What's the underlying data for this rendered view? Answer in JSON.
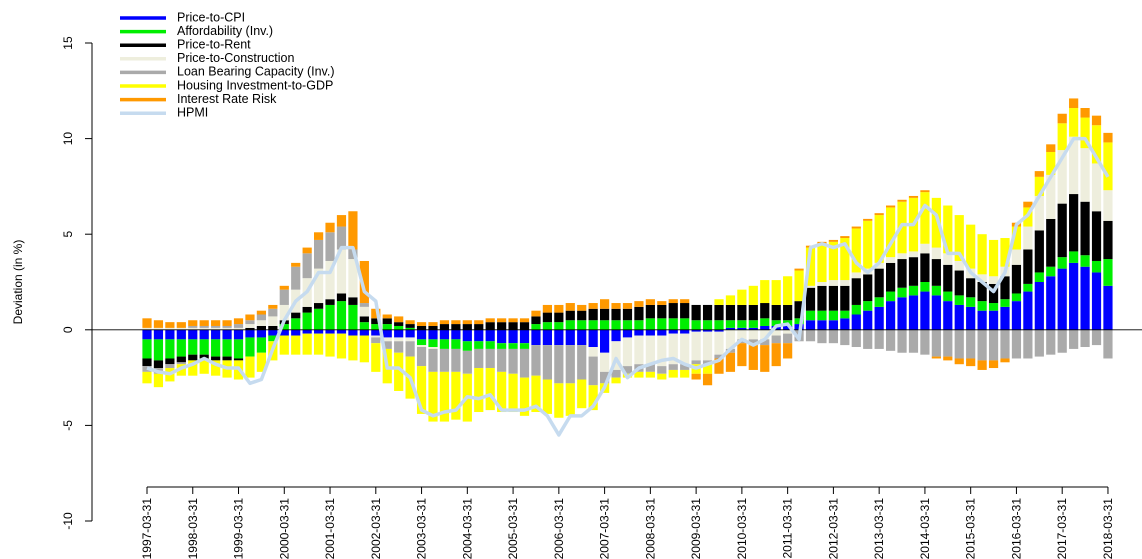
{
  "chart_data": {
    "type": "bar",
    "stacked": true,
    "ylabel": "Deviation (in %)",
    "ylim": [
      -10,
      15
    ],
    "yticks": [
      -10,
      -5,
      0,
      5,
      10,
      15
    ],
    "legend": "top-left",
    "categories": [
      "1997-03-31",
      null,
      null,
      null,
      "1998-03-31",
      null,
      null,
      null,
      "1999-03-31",
      null,
      null,
      null,
      "2000-03-31",
      null,
      null,
      null,
      "2001-03-31",
      null,
      null,
      null,
      "2002-03-31",
      null,
      null,
      null,
      "2003-03-31",
      null,
      null,
      null,
      "2004-03-31",
      null,
      null,
      null,
      "2005-03-31",
      null,
      null,
      null,
      "2006-03-31",
      null,
      null,
      null,
      "2007-03-31",
      null,
      null,
      null,
      "2008-03-31",
      null,
      null,
      null,
      "2009-03-31",
      null,
      null,
      null,
      "2010-03-31",
      null,
      null,
      null,
      "2011-03-31",
      null,
      null,
      null,
      "2012-03-31",
      null,
      null,
      null,
      "2013-03-31",
      null,
      null,
      null,
      "2014-03-31",
      null,
      null,
      null,
      "2015-03-31",
      null,
      null,
      null,
      "2016-03-31",
      null,
      null,
      null,
      "2017-03-31",
      null,
      null,
      null,
      "2018-03-31"
    ],
    "series": [
      {
        "name": "Price-to-CPI",
        "color": "#0000ff",
        "values": [
          -0.5,
          -0.5,
          -0.5,
          -0.5,
          -0.5,
          -0.5,
          -0.5,
          -0.5,
          -0.5,
          -0.4,
          -0.4,
          -0.3,
          -0.3,
          -0.3,
          -0.2,
          -0.2,
          -0.2,
          -0.2,
          -0.3,
          -0.3,
          -0.3,
          -0.4,
          -0.4,
          -0.4,
          -0.5,
          -0.5,
          -0.5,
          -0.5,
          -0.6,
          -0.6,
          -0.6,
          -0.7,
          -0.7,
          -0.7,
          -0.8,
          -0.8,
          -0.8,
          -0.8,
          -0.8,
          -0.9,
          -1.2,
          -0.6,
          -0.4,
          -0.3,
          -0.3,
          -0.3,
          -0.2,
          -0.2,
          -0.1,
          -0.1,
          -0.1,
          0.1,
          0.1,
          0.1,
          0.2,
          0.2,
          0.2,
          0.3,
          0.5,
          0.5,
          0.5,
          0.6,
          0.8,
          1.0,
          1.2,
          1.5,
          1.7,
          1.8,
          2.0,
          1.8,
          1.5,
          1.3,
          1.2,
          1.0,
          1.0,
          1.2,
          1.5,
          2.0,
          2.5,
          2.8,
          3.2,
          3.5,
          3.3,
          3.0,
          2.3
        ]
      },
      {
        "name": "Affordability (Inv.)",
        "color": "#00ee00",
        "values": [
          -1.0,
          -1.1,
          -1.0,
          -0.9,
          -0.8,
          -0.8,
          -0.9,
          -0.9,
          -1.0,
          -1.0,
          -0.8,
          -0.3,
          0.3,
          0.6,
          0.9,
          1.1,
          1.3,
          1.5,
          1.3,
          0.4,
          0.3,
          0.3,
          0.2,
          0.1,
          -0.3,
          -0.4,
          -0.5,
          -0.5,
          -0.5,
          -0.4,
          -0.4,
          -0.3,
          -0.3,
          -0.3,
          0.3,
          0.4,
          0.4,
          0.5,
          0.5,
          0.5,
          0.5,
          0.5,
          0.5,
          0.5,
          0.6,
          0.6,
          0.6,
          0.6,
          0.5,
          0.5,
          0.5,
          0.4,
          0.4,
          0.4,
          0.4,
          0.3,
          0.3,
          0.3,
          0.5,
          0.5,
          0.5,
          0.4,
          0.5,
          0.5,
          0.5,
          0.5,
          0.5,
          0.5,
          0.5,
          0.5,
          0.5,
          0.5,
          0.5,
          0.5,
          0.4,
          0.4,
          0.4,
          0.4,
          0.5,
          0.5,
          0.6,
          0.6,
          0.6,
          0.6,
          1.4
        ]
      },
      {
        "name": "Price-to-Rent",
        "color": "#000000",
        "values": [
          -0.4,
          -0.4,
          -0.3,
          -0.3,
          -0.3,
          -0.2,
          -0.2,
          -0.2,
          -0.1,
          0.1,
          0.2,
          0.2,
          0.2,
          0.3,
          0.3,
          0.3,
          0.3,
          0.4,
          0.4,
          0.3,
          0.3,
          0.3,
          0.2,
          0.2,
          0.2,
          0.2,
          0.3,
          0.3,
          0.3,
          0.3,
          0.4,
          0.4,
          0.4,
          0.4,
          0.4,
          0.5,
          0.5,
          0.5,
          0.5,
          0.6,
          0.6,
          0.6,
          0.6,
          0.7,
          0.7,
          0.7,
          0.8,
          0.8,
          0.8,
          0.8,
          0.8,
          0.8,
          0.8,
          0.8,
          0.8,
          0.8,
          0.8,
          0.9,
          1.2,
          1.3,
          1.3,
          1.3,
          1.4,
          1.4,
          1.5,
          1.5,
          1.5,
          1.5,
          1.5,
          1.4,
          1.4,
          1.3,
          1.0,
          1.0,
          1.0,
          1.2,
          1.5,
          1.8,
          2.2,
          2.5,
          2.8,
          3.0,
          2.8,
          2.6,
          2.0
        ]
      },
      {
        "name": "Price-to-Construction",
        "color": "#eeeedd",
        "values": [
          0.1,
          0.1,
          0.1,
          0.1,
          0.1,
          0.1,
          0.1,
          0.1,
          0.1,
          0.2,
          0.3,
          0.5,
          0.8,
          1.2,
          1.5,
          1.8,
          2.0,
          2.3,
          2.0,
          0.5,
          -0.1,
          -0.2,
          -0.2,
          -0.2,
          -0.1,
          -0.1,
          0.0,
          0.0,
          0.0,
          0.0,
          0.0,
          0.0,
          0.0,
          0.0,
          0.0,
          0.0,
          0.0,
          0.0,
          0.0,
          -0.5,
          -1.0,
          -1.5,
          -1.5,
          -1.5,
          -1.5,
          -1.6,
          -1.6,
          -1.6,
          -1.5,
          -1.5,
          -1.2,
          -1.0,
          -0.5,
          -0.5,
          -0.5,
          -0.3,
          -0.2,
          0.0,
          0.1,
          0.2,
          0.3,
          0.3,
          0.3,
          0.3,
          0.3,
          0.3,
          0.3,
          0.3,
          0.5,
          0.6,
          0.6,
          0.5,
          0.5,
          0.4,
          0.4,
          0.5,
          0.8,
          1.2,
          1.8,
          2.3,
          2.8,
          3.0,
          2.8,
          2.5,
          1.6
        ]
      },
      {
        "name": "Loan Bearing Capacity (Inv.)",
        "color": "#aaaaaa",
        "values": [
          -0.3,
          -0.3,
          -0.2,
          -0.1,
          0.1,
          0.1,
          0.1,
          0.1,
          0.2,
          0.2,
          0.3,
          0.4,
          0.8,
          1.2,
          1.3,
          1.5,
          1.5,
          1.2,
          0.5,
          0.2,
          -0.3,
          -0.4,
          -0.6,
          -0.8,
          -1.0,
          -1.2,
          -1.2,
          -1.2,
          -1.2,
          -1.0,
          -1.0,
          -1.2,
          -1.3,
          -1.5,
          -1.6,
          -1.8,
          -2.0,
          -2.0,
          -1.8,
          -1.5,
          -0.6,
          -0.4,
          -0.4,
          -0.4,
          -0.4,
          -0.4,
          -0.3,
          -0.3,
          -0.2,
          -0.2,
          -0.2,
          -0.2,
          -0.2,
          -0.3,
          -0.3,
          -0.4,
          -0.5,
          -0.6,
          -0.6,
          -0.7,
          -0.7,
          -0.8,
          -0.9,
          -1.0,
          -1.0,
          -1.1,
          -1.2,
          -1.2,
          -1.3,
          -1.4,
          -1.4,
          -1.5,
          -1.5,
          -1.6,
          -1.6,
          -1.5,
          -1.5,
          -1.5,
          -1.4,
          -1.3,
          -1.2,
          -1.0,
          -0.9,
          -0.8,
          -1.5
        ]
      },
      {
        "name": "Housing Investment-to-GDP",
        "color": "#ffff00",
        "values": [
          -0.6,
          -0.7,
          -0.7,
          -0.6,
          -0.8,
          -0.8,
          -0.8,
          -0.9,
          -1.0,
          -1.1,
          -1.0,
          -1.0,
          -1.0,
          -1.0,
          -1.1,
          -1.1,
          -1.2,
          -1.3,
          -1.3,
          -1.4,
          -1.5,
          -1.8,
          -2.0,
          -2.2,
          -2.5,
          -2.6,
          -2.6,
          -2.5,
          -2.5,
          -2.3,
          -2.2,
          -2.1,
          -2.0,
          -2.0,
          -1.9,
          -1.8,
          -1.8,
          -1.7,
          -1.5,
          -1.3,
          -0.5,
          -0.3,
          -0.2,
          -0.3,
          -0.3,
          -0.3,
          -0.4,
          -0.4,
          -0.5,
          -0.5,
          0.3,
          0.5,
          0.8,
          1.0,
          1.2,
          1.3,
          1.5,
          1.6,
          2.0,
          2.0,
          2.0,
          2.2,
          2.3,
          2.5,
          2.5,
          2.6,
          2.7,
          2.8,
          2.7,
          2.6,
          2.5,
          2.4,
          2.3,
          2.1,
          1.9,
          1.5,
          1.2,
          1.0,
          1.0,
          1.2,
          1.4,
          1.5,
          1.6,
          2.0,
          2.5
        ]
      },
      {
        "name": "Interest Rate Risk",
        "color": "#ff9900",
        "values": [
          0.5,
          0.4,
          0.3,
          0.3,
          0.3,
          0.3,
          0.3,
          0.3,
          0.3,
          0.3,
          0.2,
          0.2,
          0.2,
          0.2,
          0.3,
          0.4,
          0.5,
          0.6,
          2.0,
          2.2,
          0.5,
          0.2,
          0.3,
          0.2,
          0.2,
          0.2,
          0.2,
          0.2,
          0.2,
          0.2,
          0.2,
          0.2,
          0.2,
          0.2,
          0.3,
          0.4,
          0.4,
          0.4,
          0.3,
          0.3,
          0.5,
          0.3,
          0.3,
          0.3,
          0.3,
          0.2,
          0.2,
          0.2,
          -0.3,
          -0.6,
          -0.8,
          -1.0,
          -1.2,
          -1.3,
          -1.4,
          -1.2,
          -0.8,
          0.1,
          0.1,
          0.1,
          0.1,
          0.1,
          0.1,
          0.1,
          0.1,
          0.1,
          0.1,
          0.1,
          0.1,
          -0.1,
          -0.2,
          -0.3,
          -0.4,
          -0.5,
          -0.4,
          -0.2,
          0.2,
          0.3,
          0.3,
          0.4,
          0.5,
          0.5,
          0.5,
          0.5,
          0.5
        ]
      },
      {
        "name": "HPMI",
        "color": "#c6dbef",
        "type": "line",
        "values": [
          -2.0,
          -2.2,
          -2.3,
          -2.0,
          -1.8,
          -1.5,
          -1.8,
          -2.0,
          -2.0,
          -2.8,
          -2.6,
          -1.0,
          0.5,
          1.5,
          2.0,
          3.0,
          3.0,
          4.3,
          4.3,
          2.0,
          1.5,
          -2.0,
          -2.0,
          -2.5,
          -4.2,
          -4.5,
          -4.3,
          -4.2,
          -3.5,
          -3.6,
          -3.4,
          -4.2,
          -4.2,
          -4.2,
          -4.0,
          -4.5,
          -5.5,
          -4.5,
          -4.5,
          -4.0,
          -3.0,
          -1.5,
          -2.5,
          -2.0,
          -1.8,
          -1.6,
          -1.5,
          -1.8,
          -2.0,
          -1.8,
          -1.6,
          -1.0,
          -0.5,
          -0.8,
          -0.5,
          0.2,
          0.3,
          -0.5,
          4.3,
          4.5,
          4.3,
          4.5,
          3.5,
          3.0,
          3.5,
          4.5,
          5.5,
          5.5,
          6.5,
          6.0,
          4.0,
          4.0,
          3.0,
          2.5,
          2.0,
          3.0,
          5.5,
          6.0,
          7.0,
          8.0,
          9.0,
          10.0,
          10.0,
          9.0,
          8.0
        ]
      }
    ]
  }
}
